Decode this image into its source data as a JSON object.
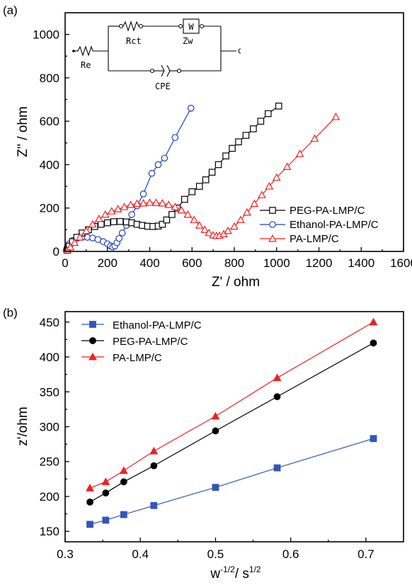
{
  "chart_data": [
    {
      "type": "scatter",
      "panel_label": "(a)",
      "xlabel": "Z' / ohm",
      "ylabel": "Z'' / ohm",
      "xlim": [
        0,
        1600
      ],
      "ylim": [
        0,
        1100
      ],
      "xticks": [
        "0",
        "200",
        "400",
        "600",
        "800",
        "1000",
        "1200",
        "1400",
        "1600"
      ],
      "yticks": [
        "0",
        "200",
        "400",
        "600",
        "800",
        "1000"
      ],
      "legend_position": "right",
      "series": [
        {
          "name": "PEG-PA-LMP/C",
          "color": "#000000",
          "marker": "square",
          "x": [
            10,
            20,
            35,
            55,
            80,
            110,
            140,
            170,
            200,
            230,
            260,
            290,
            315,
            340,
            365,
            390,
            415,
            440,
            460,
            480,
            505,
            530,
            565,
            600,
            635,
            665,
            695,
            725,
            760,
            790,
            820,
            855,
            890,
            925,
            960,
            1010
          ],
          "y": [
            5,
            25,
            45,
            65,
            85,
            100,
            115,
            125,
            132,
            137,
            138,
            136,
            132,
            125,
            120,
            116,
            115,
            117,
            125,
            145,
            170,
            200,
            240,
            275,
            300,
            330,
            365,
            400,
            440,
            475,
            505,
            535,
            565,
            600,
            635,
            670
          ]
        },
        {
          "name": "Ethanol-PA-LMP/C",
          "color": "#1f3fbf",
          "marker": "circle",
          "x": [
            5,
            10,
            20,
            35,
            55,
            80,
            105,
            130,
            155,
            180,
            200,
            215,
            225,
            235,
            245,
            255,
            270,
            290,
            315,
            340,
            370,
            410,
            440,
            470,
            520,
            595
          ],
          "y": [
            5,
            20,
            35,
            50,
            60,
            65,
            65,
            62,
            55,
            45,
            35,
            25,
            20,
            25,
            40,
            60,
            85,
            120,
            170,
            210,
            265,
            360,
            400,
            430,
            525,
            660
          ]
        },
        {
          "name": "PA-LMP/C",
          "color": "#ee2222",
          "marker": "triangle",
          "x": [
            10,
            25,
            45,
            70,
            100,
            130,
            160,
            190,
            220,
            250,
            280,
            310,
            340,
            370,
            400,
            430,
            460,
            490,
            520,
            550,
            580,
            610,
            635,
            660,
            680,
            700,
            715,
            730,
            750,
            770,
            800,
            830,
            860,
            895,
            930,
            965,
            1000,
            1050,
            1110,
            1180,
            1280
          ],
          "y": [
            5,
            20,
            40,
            65,
            95,
            125,
            150,
            170,
            185,
            195,
            205,
            215,
            220,
            222,
            225,
            224,
            222,
            215,
            205,
            190,
            170,
            145,
            120,
            100,
            85,
            75,
            72,
            73,
            80,
            95,
            115,
            145,
            180,
            220,
            260,
            300,
            340,
            390,
            450,
            520,
            620
          ]
        }
      ],
      "inset_labels": {
        "re": "Re",
        "rct": "Rct",
        "w_box": "W",
        "zw": "Zw",
        "cpe": "CPE"
      }
    },
    {
      "type": "line",
      "panel_label": "(b)",
      "xlabel_base": "w",
      "xlabel_exp1": "-1/2",
      "xlabel_unit": "/ s",
      "xlabel_exp2": "1/2",
      "ylabel": "z'/ohm",
      "xlim": [
        0.3,
        0.75
      ],
      "ylim": [
        135,
        465
      ],
      "xticks": [
        "0.3",
        "0.4",
        "0.5",
        "0.6",
        "0.7"
      ],
      "yticks": [
        "150",
        "200",
        "250",
        "300",
        "350",
        "400",
        "450"
      ],
      "legend_position": "top-left",
      "series": [
        {
          "name": "Ethanol-PA-LMP/C",
          "color": "#3355bb",
          "marker": "square",
          "x": [
            0.333,
            0.354,
            0.378,
            0.418,
            0.5,
            0.582,
            0.71
          ],
          "y": [
            160,
            166,
            174,
            187,
            213,
            241,
            283
          ]
        },
        {
          "name": "PEG-PA-LMP/C",
          "color": "#000000",
          "marker": "circle",
          "x": [
            0.333,
            0.354,
            0.378,
            0.418,
            0.5,
            0.582,
            0.71
          ],
          "y": [
            192,
            205,
            221,
            244,
            294,
            343,
            420
          ]
        },
        {
          "name": "PA-LMP/C",
          "color": "#ee2222",
          "marker": "triangle",
          "x": [
            0.333,
            0.354,
            0.378,
            0.418,
            0.5,
            0.582,
            0.71
          ],
          "y": [
            212,
            221,
            237,
            265,
            315,
            370,
            450
          ]
        }
      ]
    }
  ]
}
